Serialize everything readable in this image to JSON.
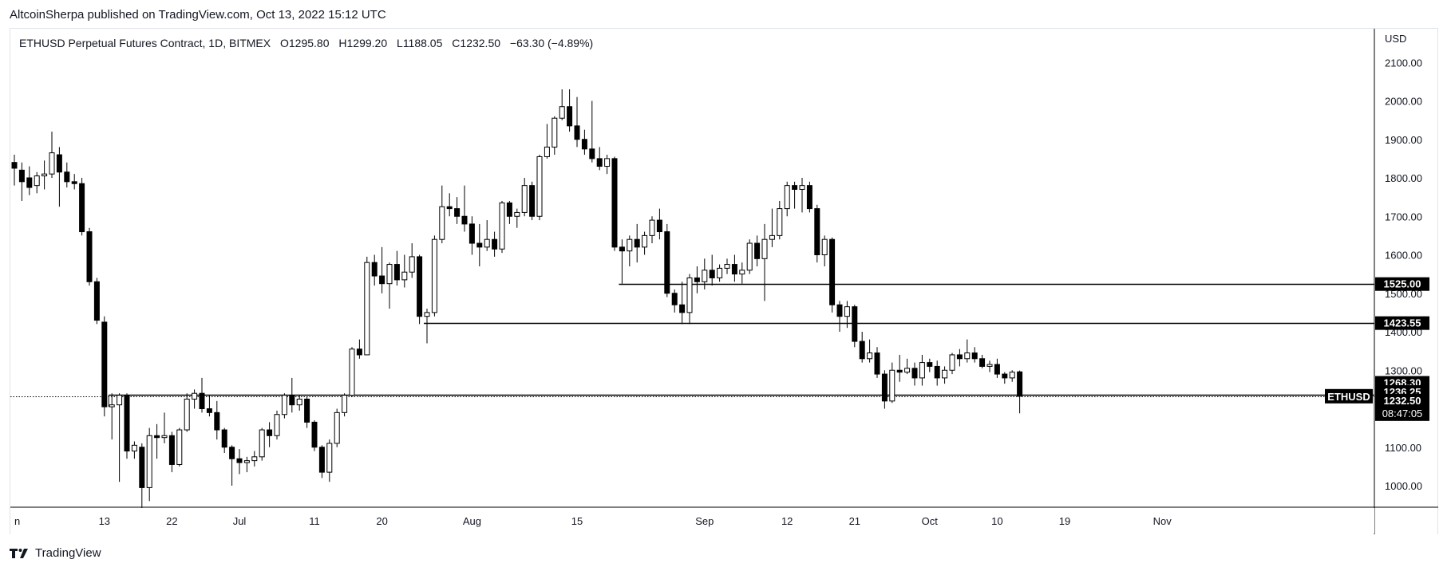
{
  "header": {
    "publisher_line": "AltcoinSherpa published on TradingView.com, Oct 13, 2022 15:12 UTC"
  },
  "legend": {
    "symbol_line": "ETHUSD Perpetual Futures Contract, 1D, BITMEX",
    "open_label": "O",
    "open": "1295.80",
    "high_label": "H",
    "high": "1299.20",
    "low_label": "L",
    "low": "1188.05",
    "close_label": "C",
    "close": "1232.50",
    "change": "−63.30 (−4.89%)"
  },
  "footer": {
    "brand": "TradingView",
    "logo_icon": "tradingview-logo-icon"
  },
  "colors": {
    "up_fill": "#ffffff",
    "down_fill": "#000000",
    "wick": "#000000",
    "grid_text": "#131722",
    "axis_line": "#000000",
    "badge_bg": "#000000",
    "badge_text": "#ffffff"
  },
  "chart_data": {
    "type": "candlestick",
    "currency": "USD",
    "ylim": [
      950,
      2150
    ],
    "y_ticks": [
      "1000.00",
      "1100.00",
      "1200.00",
      "1300.00",
      "1400.00",
      "1500.00",
      "1600.00",
      "1700.00",
      "1800.00",
      "1900.00",
      "2000.00",
      "2100.00"
    ],
    "x_ticks": [
      {
        "label": "n",
        "date": "2022-06-01"
      },
      {
        "label": "13",
        "date": "2022-06-13"
      },
      {
        "label": "22",
        "date": "2022-06-22"
      },
      {
        "label": "Jul",
        "date": "2022-07-01"
      },
      {
        "label": "11",
        "date": "2022-07-11"
      },
      {
        "label": "20",
        "date": "2022-07-20"
      },
      {
        "label": "Aug",
        "date": "2022-08-01"
      },
      {
        "label": "15",
        "date": "2022-08-15"
      },
      {
        "label": "Sep",
        "date": "2022-09-01"
      },
      {
        "label": "12",
        "date": "2022-09-12"
      },
      {
        "label": "21",
        "date": "2022-09-21"
      },
      {
        "label": "Oct",
        "date": "2022-10-01"
      },
      {
        "label": "10",
        "date": "2022-10-10"
      },
      {
        "label": "19",
        "date": "2022-10-19"
      },
      {
        "label": "Nov",
        "date": "2022-11-01"
      }
    ],
    "candles": [
      {
        "date": "2022-06-01",
        "o": 1840,
        "h": 1860,
        "l": 1780,
        "c": 1825
      },
      {
        "date": "2022-06-02",
        "o": 1820,
        "h": 1840,
        "l": 1740,
        "c": 1790
      },
      {
        "date": "2022-06-03",
        "o": 1800,
        "h": 1830,
        "l": 1755,
        "c": 1775
      },
      {
        "date": "2022-06-04",
        "o": 1780,
        "h": 1815,
        "l": 1760,
        "c": 1805
      },
      {
        "date": "2022-06-05",
        "o": 1805,
        "h": 1845,
        "l": 1770,
        "c": 1810
      },
      {
        "date": "2022-06-06",
        "o": 1810,
        "h": 1920,
        "l": 1800,
        "c": 1865
      },
      {
        "date": "2022-06-07",
        "o": 1860,
        "h": 1880,
        "l": 1725,
        "c": 1815
      },
      {
        "date": "2022-06-08",
        "o": 1815,
        "h": 1840,
        "l": 1775,
        "c": 1790
      },
      {
        "date": "2022-06-09",
        "o": 1790,
        "h": 1810,
        "l": 1770,
        "c": 1785
      },
      {
        "date": "2022-06-10",
        "o": 1785,
        "h": 1800,
        "l": 1650,
        "c": 1660
      },
      {
        "date": "2022-06-11",
        "o": 1660,
        "h": 1670,
        "l": 1520,
        "c": 1530
      },
      {
        "date": "2022-06-12",
        "o": 1530,
        "h": 1540,
        "l": 1420,
        "c": 1430
      },
      {
        "date": "2022-06-13",
        "o": 1425,
        "h": 1440,
        "l": 1180,
        "c": 1205
      },
      {
        "date": "2022-06-14",
        "o": 1205,
        "h": 1240,
        "l": 1120,
        "c": 1210
      },
      {
        "date": "2022-06-15",
        "o": 1210,
        "h": 1240,
        "l": 1010,
        "c": 1235
      },
      {
        "date": "2022-06-16",
        "o": 1235,
        "h": 1240,
        "l": 1070,
        "c": 1090
      },
      {
        "date": "2022-06-17",
        "o": 1090,
        "h": 1115,
        "l": 1070,
        "c": 1105
      },
      {
        "date": "2022-06-18",
        "o": 1100,
        "h": 1110,
        "l": 900,
        "c": 995
      },
      {
        "date": "2022-06-19",
        "o": 995,
        "h": 1150,
        "l": 960,
        "c": 1130
      },
      {
        "date": "2022-06-20",
        "o": 1130,
        "h": 1160,
        "l": 1070,
        "c": 1125
      },
      {
        "date": "2022-06-21",
        "o": 1125,
        "h": 1190,
        "l": 1110,
        "c": 1130
      },
      {
        "date": "2022-06-22",
        "o": 1130,
        "h": 1140,
        "l": 1035,
        "c": 1055
      },
      {
        "date": "2022-06-23",
        "o": 1055,
        "h": 1150,
        "l": 1050,
        "c": 1145
      },
      {
        "date": "2022-06-24",
        "o": 1145,
        "h": 1240,
        "l": 1140,
        "c": 1225
      },
      {
        "date": "2022-06-25",
        "o": 1225,
        "h": 1250,
        "l": 1200,
        "c": 1240
      },
      {
        "date": "2022-06-26",
        "o": 1240,
        "h": 1280,
        "l": 1190,
        "c": 1200
      },
      {
        "date": "2022-06-27",
        "o": 1200,
        "h": 1235,
        "l": 1180,
        "c": 1190
      },
      {
        "date": "2022-06-28",
        "o": 1190,
        "h": 1220,
        "l": 1120,
        "c": 1145
      },
      {
        "date": "2022-06-29",
        "o": 1145,
        "h": 1150,
        "l": 1085,
        "c": 1100
      },
      {
        "date": "2022-06-30",
        "o": 1100,
        "h": 1105,
        "l": 1000,
        "c": 1070
      },
      {
        "date": "2022-07-01",
        "o": 1070,
        "h": 1095,
        "l": 1030,
        "c": 1060
      },
      {
        "date": "2022-07-02",
        "o": 1060,
        "h": 1075,
        "l": 1035,
        "c": 1065
      },
      {
        "date": "2022-07-03",
        "o": 1065,
        "h": 1090,
        "l": 1050,
        "c": 1075
      },
      {
        "date": "2022-07-04",
        "o": 1075,
        "h": 1150,
        "l": 1065,
        "c": 1145
      },
      {
        "date": "2022-07-05",
        "o": 1145,
        "h": 1165,
        "l": 1100,
        "c": 1130
      },
      {
        "date": "2022-07-06",
        "o": 1130,
        "h": 1195,
        "l": 1120,
        "c": 1185
      },
      {
        "date": "2022-07-07",
        "o": 1185,
        "h": 1240,
        "l": 1175,
        "c": 1235
      },
      {
        "date": "2022-07-08",
        "o": 1235,
        "h": 1280,
        "l": 1190,
        "c": 1210
      },
      {
        "date": "2022-07-09",
        "o": 1210,
        "h": 1235,
        "l": 1195,
        "c": 1225
      },
      {
        "date": "2022-07-10",
        "o": 1225,
        "h": 1230,
        "l": 1150,
        "c": 1165
      },
      {
        "date": "2022-07-11",
        "o": 1165,
        "h": 1170,
        "l": 1090,
        "c": 1100
      },
      {
        "date": "2022-07-12",
        "o": 1100,
        "h": 1105,
        "l": 1020,
        "c": 1035
      },
      {
        "date": "2022-07-13",
        "o": 1035,
        "h": 1120,
        "l": 1010,
        "c": 1110
      },
      {
        "date": "2022-07-14",
        "o": 1110,
        "h": 1200,
        "l": 1100,
        "c": 1190
      },
      {
        "date": "2022-07-15",
        "o": 1190,
        "h": 1240,
        "l": 1180,
        "c": 1235
      },
      {
        "date": "2022-07-16",
        "o": 1235,
        "h": 1360,
        "l": 1230,
        "c": 1355
      },
      {
        "date": "2022-07-17",
        "o": 1355,
        "h": 1380,
        "l": 1330,
        "c": 1340
      },
      {
        "date": "2022-07-18",
        "o": 1340,
        "h": 1595,
        "l": 1340,
        "c": 1580
      },
      {
        "date": "2022-07-19",
        "o": 1580,
        "h": 1600,
        "l": 1520,
        "c": 1545
      },
      {
        "date": "2022-07-20",
        "o": 1545,
        "h": 1620,
        "l": 1500,
        "c": 1525
      },
      {
        "date": "2022-07-21",
        "o": 1525,
        "h": 1580,
        "l": 1460,
        "c": 1575
      },
      {
        "date": "2022-07-22",
        "o": 1575,
        "h": 1610,
        "l": 1520,
        "c": 1535
      },
      {
        "date": "2022-07-23",
        "o": 1535,
        "h": 1600,
        "l": 1515,
        "c": 1555
      },
      {
        "date": "2022-07-24",
        "o": 1555,
        "h": 1630,
        "l": 1540,
        "c": 1595
      },
      {
        "date": "2022-07-25",
        "o": 1595,
        "h": 1600,
        "l": 1420,
        "c": 1440
      },
      {
        "date": "2022-07-26",
        "o": 1440,
        "h": 1460,
        "l": 1370,
        "c": 1450
      },
      {
        "date": "2022-07-27",
        "o": 1450,
        "h": 1650,
        "l": 1440,
        "c": 1640
      },
      {
        "date": "2022-07-28",
        "o": 1640,
        "h": 1780,
        "l": 1630,
        "c": 1725
      },
      {
        "date": "2022-07-29",
        "o": 1725,
        "h": 1760,
        "l": 1700,
        "c": 1720
      },
      {
        "date": "2022-07-30",
        "o": 1720,
        "h": 1750,
        "l": 1680,
        "c": 1700
      },
      {
        "date": "2022-07-31",
        "o": 1700,
        "h": 1780,
        "l": 1660,
        "c": 1680
      },
      {
        "date": "2022-08-01",
        "o": 1680,
        "h": 1700,
        "l": 1600,
        "c": 1630
      },
      {
        "date": "2022-08-02",
        "o": 1630,
        "h": 1680,
        "l": 1570,
        "c": 1620
      },
      {
        "date": "2022-08-03",
        "o": 1620,
        "h": 1690,
        "l": 1610,
        "c": 1640
      },
      {
        "date": "2022-08-04",
        "o": 1640,
        "h": 1660,
        "l": 1595,
        "c": 1615
      },
      {
        "date": "2022-08-05",
        "o": 1615,
        "h": 1740,
        "l": 1605,
        "c": 1735
      },
      {
        "date": "2022-08-06",
        "o": 1735,
        "h": 1740,
        "l": 1680,
        "c": 1700
      },
      {
        "date": "2022-08-07",
        "o": 1700,
        "h": 1720,
        "l": 1670,
        "c": 1710
      },
      {
        "date": "2022-08-08",
        "o": 1710,
        "h": 1800,
        "l": 1700,
        "c": 1780
      },
      {
        "date": "2022-08-09",
        "o": 1780,
        "h": 1790,
        "l": 1690,
        "c": 1700
      },
      {
        "date": "2022-08-10",
        "o": 1700,
        "h": 1860,
        "l": 1690,
        "c": 1855
      },
      {
        "date": "2022-08-11",
        "o": 1855,
        "h": 1940,
        "l": 1850,
        "c": 1880
      },
      {
        "date": "2022-08-12",
        "o": 1880,
        "h": 1960,
        "l": 1860,
        "c": 1955
      },
      {
        "date": "2022-08-13",
        "o": 1955,
        "h": 2030,
        "l": 1950,
        "c": 1985
      },
      {
        "date": "2022-08-14",
        "o": 1985,
        "h": 2030,
        "l": 1920,
        "c": 1935
      },
      {
        "date": "2022-08-15",
        "o": 1935,
        "h": 2010,
        "l": 1880,
        "c": 1900
      },
      {
        "date": "2022-08-16",
        "o": 1900,
        "h": 1925,
        "l": 1860,
        "c": 1875
      },
      {
        "date": "2022-08-17",
        "o": 1875,
        "h": 2000,
        "l": 1840,
        "c": 1850
      },
      {
        "date": "2022-08-18",
        "o": 1850,
        "h": 1880,
        "l": 1820,
        "c": 1830
      },
      {
        "date": "2022-08-19",
        "o": 1830,
        "h": 1860,
        "l": 1810,
        "c": 1850
      },
      {
        "date": "2022-08-20",
        "o": 1850,
        "h": 1855,
        "l": 1610,
        "c": 1620
      },
      {
        "date": "2022-08-21",
        "o": 1620,
        "h": 1640,
        "l": 1525,
        "c": 1610
      },
      {
        "date": "2022-08-22",
        "o": 1610,
        "h": 1650,
        "l": 1570,
        "c": 1640
      },
      {
        "date": "2022-08-23",
        "o": 1640,
        "h": 1680,
        "l": 1580,
        "c": 1620
      },
      {
        "date": "2022-08-24",
        "o": 1620,
        "h": 1660,
        "l": 1600,
        "c": 1650
      },
      {
        "date": "2022-08-25",
        "o": 1650,
        "h": 1700,
        "l": 1630,
        "c": 1690
      },
      {
        "date": "2022-08-26",
        "o": 1690,
        "h": 1720,
        "l": 1640,
        "c": 1660
      },
      {
        "date": "2022-08-27",
        "o": 1660,
        "h": 1680,
        "l": 1490,
        "c": 1500
      },
      {
        "date": "2022-08-28",
        "o": 1500,
        "h": 1510,
        "l": 1450,
        "c": 1470
      },
      {
        "date": "2022-08-29",
        "o": 1470,
        "h": 1530,
        "l": 1420,
        "c": 1450
      },
      {
        "date": "2022-08-30",
        "o": 1450,
        "h": 1550,
        "l": 1420,
        "c": 1540
      },
      {
        "date": "2022-08-31",
        "o": 1540,
        "h": 1570,
        "l": 1500,
        "c": 1530
      },
      {
        "date": "2022-09-01",
        "o": 1530,
        "h": 1590,
        "l": 1510,
        "c": 1560
      },
      {
        "date": "2022-09-02",
        "o": 1560,
        "h": 1600,
        "l": 1520,
        "c": 1540
      },
      {
        "date": "2022-09-03",
        "o": 1540,
        "h": 1575,
        "l": 1530,
        "c": 1565
      },
      {
        "date": "2022-09-04",
        "o": 1565,
        "h": 1590,
        "l": 1550,
        "c": 1575
      },
      {
        "date": "2022-09-05",
        "o": 1575,
        "h": 1600,
        "l": 1530,
        "c": 1550
      },
      {
        "date": "2022-09-06",
        "o": 1550,
        "h": 1580,
        "l": 1525,
        "c": 1560
      },
      {
        "date": "2022-09-07",
        "o": 1560,
        "h": 1640,
        "l": 1550,
        "c": 1630
      },
      {
        "date": "2022-09-08",
        "o": 1630,
        "h": 1650,
        "l": 1570,
        "c": 1590
      },
      {
        "date": "2022-09-09",
        "o": 1590,
        "h": 1680,
        "l": 1480,
        "c": 1640
      },
      {
        "date": "2022-09-10",
        "o": 1640,
        "h": 1720,
        "l": 1620,
        "c": 1650
      },
      {
        "date": "2022-09-11",
        "o": 1650,
        "h": 1740,
        "l": 1640,
        "c": 1720
      },
      {
        "date": "2022-09-12",
        "o": 1720,
        "h": 1790,
        "l": 1700,
        "c": 1780
      },
      {
        "date": "2022-09-13",
        "o": 1780,
        "h": 1790,
        "l": 1720,
        "c": 1770
      },
      {
        "date": "2022-09-14",
        "o": 1770,
        "h": 1800,
        "l": 1710,
        "c": 1780
      },
      {
        "date": "2022-09-15",
        "o": 1780,
        "h": 1790,
        "l": 1710,
        "c": 1720
      },
      {
        "date": "2022-09-16",
        "o": 1720,
        "h": 1730,
        "l": 1580,
        "c": 1600
      },
      {
        "date": "2022-09-17",
        "o": 1600,
        "h": 1650,
        "l": 1570,
        "c": 1640
      },
      {
        "date": "2022-09-18",
        "o": 1640,
        "h": 1645,
        "l": 1450,
        "c": 1470
      },
      {
        "date": "2022-09-19",
        "o": 1470,
        "h": 1480,
        "l": 1400,
        "c": 1440
      },
      {
        "date": "2022-09-20",
        "o": 1440,
        "h": 1480,
        "l": 1410,
        "c": 1465
      },
      {
        "date": "2022-09-21",
        "o": 1465,
        "h": 1470,
        "l": 1360,
        "c": 1375
      },
      {
        "date": "2022-09-22",
        "o": 1375,
        "h": 1400,
        "l": 1320,
        "c": 1330
      },
      {
        "date": "2022-09-23",
        "o": 1330,
        "h": 1380,
        "l": 1320,
        "c": 1345
      },
      {
        "date": "2022-09-24",
        "o": 1345,
        "h": 1360,
        "l": 1280,
        "c": 1290
      },
      {
        "date": "2022-09-25",
        "o": 1290,
        "h": 1300,
        "l": 1200,
        "c": 1220
      },
      {
        "date": "2022-09-26",
        "o": 1220,
        "h": 1320,
        "l": 1215,
        "c": 1300
      },
      {
        "date": "2022-09-27",
        "o": 1300,
        "h": 1340,
        "l": 1270,
        "c": 1295
      },
      {
        "date": "2022-09-28",
        "o": 1295,
        "h": 1330,
        "l": 1290,
        "c": 1305
      },
      {
        "date": "2022-09-29",
        "o": 1305,
        "h": 1320,
        "l": 1260,
        "c": 1280
      },
      {
        "date": "2022-09-30",
        "o": 1280,
        "h": 1340,
        "l": 1260,
        "c": 1320
      },
      {
        "date": "2022-10-01",
        "o": 1320,
        "h": 1330,
        "l": 1295,
        "c": 1310
      },
      {
        "date": "2022-10-02",
        "o": 1310,
        "h": 1325,
        "l": 1260,
        "c": 1280
      },
      {
        "date": "2022-10-03",
        "o": 1280,
        "h": 1310,
        "l": 1265,
        "c": 1300
      },
      {
        "date": "2022-10-04",
        "o": 1300,
        "h": 1345,
        "l": 1290,
        "c": 1340
      },
      {
        "date": "2022-10-05",
        "o": 1340,
        "h": 1355,
        "l": 1310,
        "c": 1330
      },
      {
        "date": "2022-10-06",
        "o": 1330,
        "h": 1380,
        "l": 1320,
        "c": 1345
      },
      {
        "date": "2022-10-07",
        "o": 1345,
        "h": 1360,
        "l": 1320,
        "c": 1330
      },
      {
        "date": "2022-10-08",
        "o": 1330,
        "h": 1340,
        "l": 1305,
        "c": 1310
      },
      {
        "date": "2022-10-09",
        "o": 1310,
        "h": 1325,
        "l": 1295,
        "c": 1315
      },
      {
        "date": "2022-10-10",
        "o": 1315,
        "h": 1330,
        "l": 1280,
        "c": 1290
      },
      {
        "date": "2022-10-11",
        "o": 1290,
        "h": 1295,
        "l": 1265,
        "c": 1280
      },
      {
        "date": "2022-10-12",
        "o": 1280,
        "h": 1300,
        "l": 1270,
        "c": 1295
      },
      {
        "date": "2022-10-13",
        "o": 1295.8,
        "h": 1299.2,
        "l": 1188.05,
        "c": 1232.5
      }
    ],
    "horizontal_levels": [
      {
        "value": 1525.0,
        "label": "1525.00",
        "from": "2022-08-21",
        "style": "solid"
      },
      {
        "value": 1423.55,
        "label": "1423.55",
        "from": "2022-07-26",
        "style": "solid"
      },
      {
        "value": 1268.3,
        "label": "1268.30",
        "style": "label-only"
      },
      {
        "value": 1236.25,
        "label": "1236.25",
        "from": "2022-06-14",
        "style": "solid"
      },
      {
        "value": 1232.5,
        "label": "1232.50",
        "from": "2022-06-01",
        "style": "dotted",
        "symbol": "ETHUSD",
        "countdown": "08:47:05"
      }
    ]
  }
}
